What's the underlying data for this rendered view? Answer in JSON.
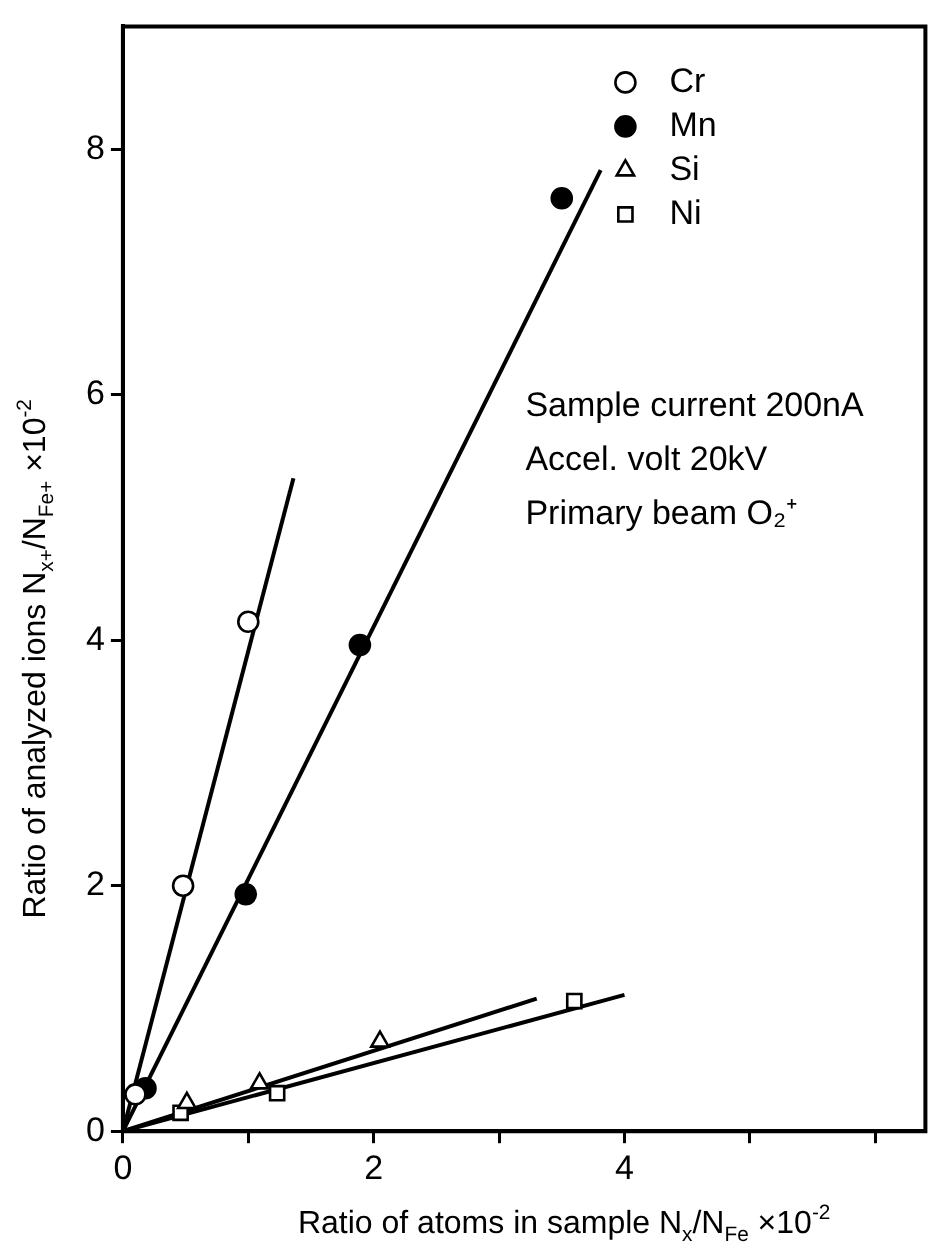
{
  "chart_data": {
    "type": "scatter",
    "xlabel": "Ratio of atoms in sample N$_{x}$/N$_{Fe}$ ×10$^{-2}$",
    "ylabel": "Ratio of analyzed ions N$_{x+}$/N$_{Fe+}$ ×10$^{-2}$",
    "xlim": [
      0,
      6.4
    ],
    "xticks": [
      0,
      {
        "value": 1,
        "label": null
      },
      2,
      {
        "value": 3,
        "label": null
      },
      4,
      {
        "value": 5,
        "label": null
      },
      {
        "value": 6,
        "label": null
      }
    ],
    "ylim": [
      0,
      9
    ],
    "yticks": [
      0,
      2,
      4,
      6,
      8
    ],
    "grid": false,
    "legend": "top right",
    "annotations": [
      "Sample current 200nA",
      "Accel. volt 20kV",
      "Primary beam O₂⁺"
    ],
    "series": [
      {
        "name": "Cr",
        "marker": "circle",
        "color": "#ffffff",
        "x": [
          0.1,
          0.48,
          1.0
        ],
        "values": [
          0.3,
          2.0,
          4.15
        ]
      },
      {
        "name": "Mn",
        "marker": "circle",
        "color": "#000000",
        "x": [
          0.18,
          0.98,
          1.89,
          3.5
        ],
        "values": [
          0.35,
          1.93,
          3.96,
          7.6
        ]
      },
      {
        "name": "Si",
        "marker": "triangle",
        "color": "#ffffff",
        "x": [
          0.51,
          1.09,
          2.05
        ],
        "values": [
          0.23,
          0.39,
          0.73
        ]
      },
      {
        "name": "Ni",
        "marker": "square",
        "color": "#ffffff",
        "x": [
          0.46,
          1.23,
          3.6
        ],
        "values": [
          0.15,
          0.31,
          1.06
        ]
      },
      {
        "type": "line",
        "marker": "none",
        "color": "#000000",
        "x": [
          0,
          1.36
        ],
        "values": [
          0,
          5.32
        ]
      },
      {
        "type": "line",
        "marker": "none",
        "color": "#000000",
        "x": [
          0,
          3.81
        ],
        "values": [
          0,
          7.83
        ]
      },
      {
        "type": "line",
        "marker": "none",
        "color": "#000000",
        "x": [
          0,
          3.3
        ],
        "values": [
          0,
          1.08
        ]
      },
      {
        "type": "line",
        "marker": "none",
        "color": "#000000",
        "x": [
          0,
          4.0
        ],
        "values": [
          0,
          1.11
        ]
      }
    ]
  }
}
